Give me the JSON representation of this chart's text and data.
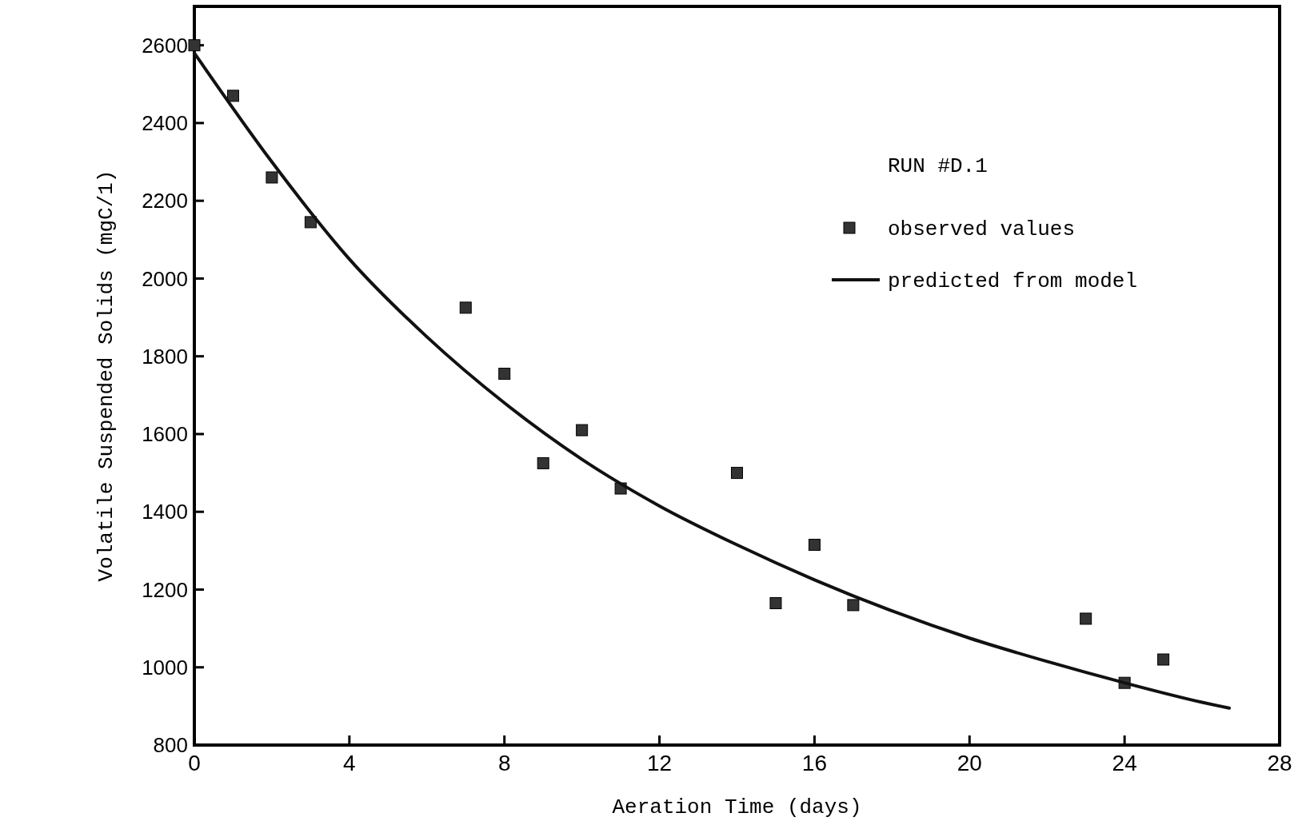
{
  "chart_data": {
    "type": "scatter",
    "xlabel": "Aeration Time (days)",
    "ylabel": "Volatile Suspended Solids (mgC/1)",
    "annotations": [
      "RUN #D.1"
    ],
    "xlim": [
      0,
      28
    ],
    "xticks": [
      0,
      4,
      8,
      12,
      16,
      20,
      24,
      28
    ],
    "ylim": [
      800,
      2700
    ],
    "yticks": [
      800,
      1000,
      1200,
      1400,
      1600,
      1800,
      2000,
      2200,
      2400,
      2600
    ],
    "grid": false,
    "legend": "top right",
    "series": [
      {
        "name": "observed values",
        "marker": "square",
        "color": "#333333",
        "x": [
          0,
          1,
          2,
          3,
          7,
          8,
          9,
          10,
          11,
          14,
          15,
          16,
          17,
          23,
          24,
          25
        ],
        "values": [
          2600,
          2470,
          2260,
          2145,
          1925,
          1755,
          1525,
          1610,
          1460,
          1500,
          1165,
          1315,
          1160,
          1125,
          960,
          1020
        ]
      },
      {
        "name": "predicted from model",
        "type": "line",
        "marker": "none",
        "line_style": "solid",
        "color": "#111111",
        "x": [
          0,
          2,
          4,
          6,
          8,
          10,
          12,
          14,
          16,
          18,
          20,
          22,
          24,
          26,
          26.7
        ],
        "values": [
          2580,
          2300,
          2050,
          1850,
          1680,
          1535,
          1415,
          1315,
          1225,
          1145,
          1075,
          1015,
          960,
          910,
          895
        ]
      }
    ]
  }
}
